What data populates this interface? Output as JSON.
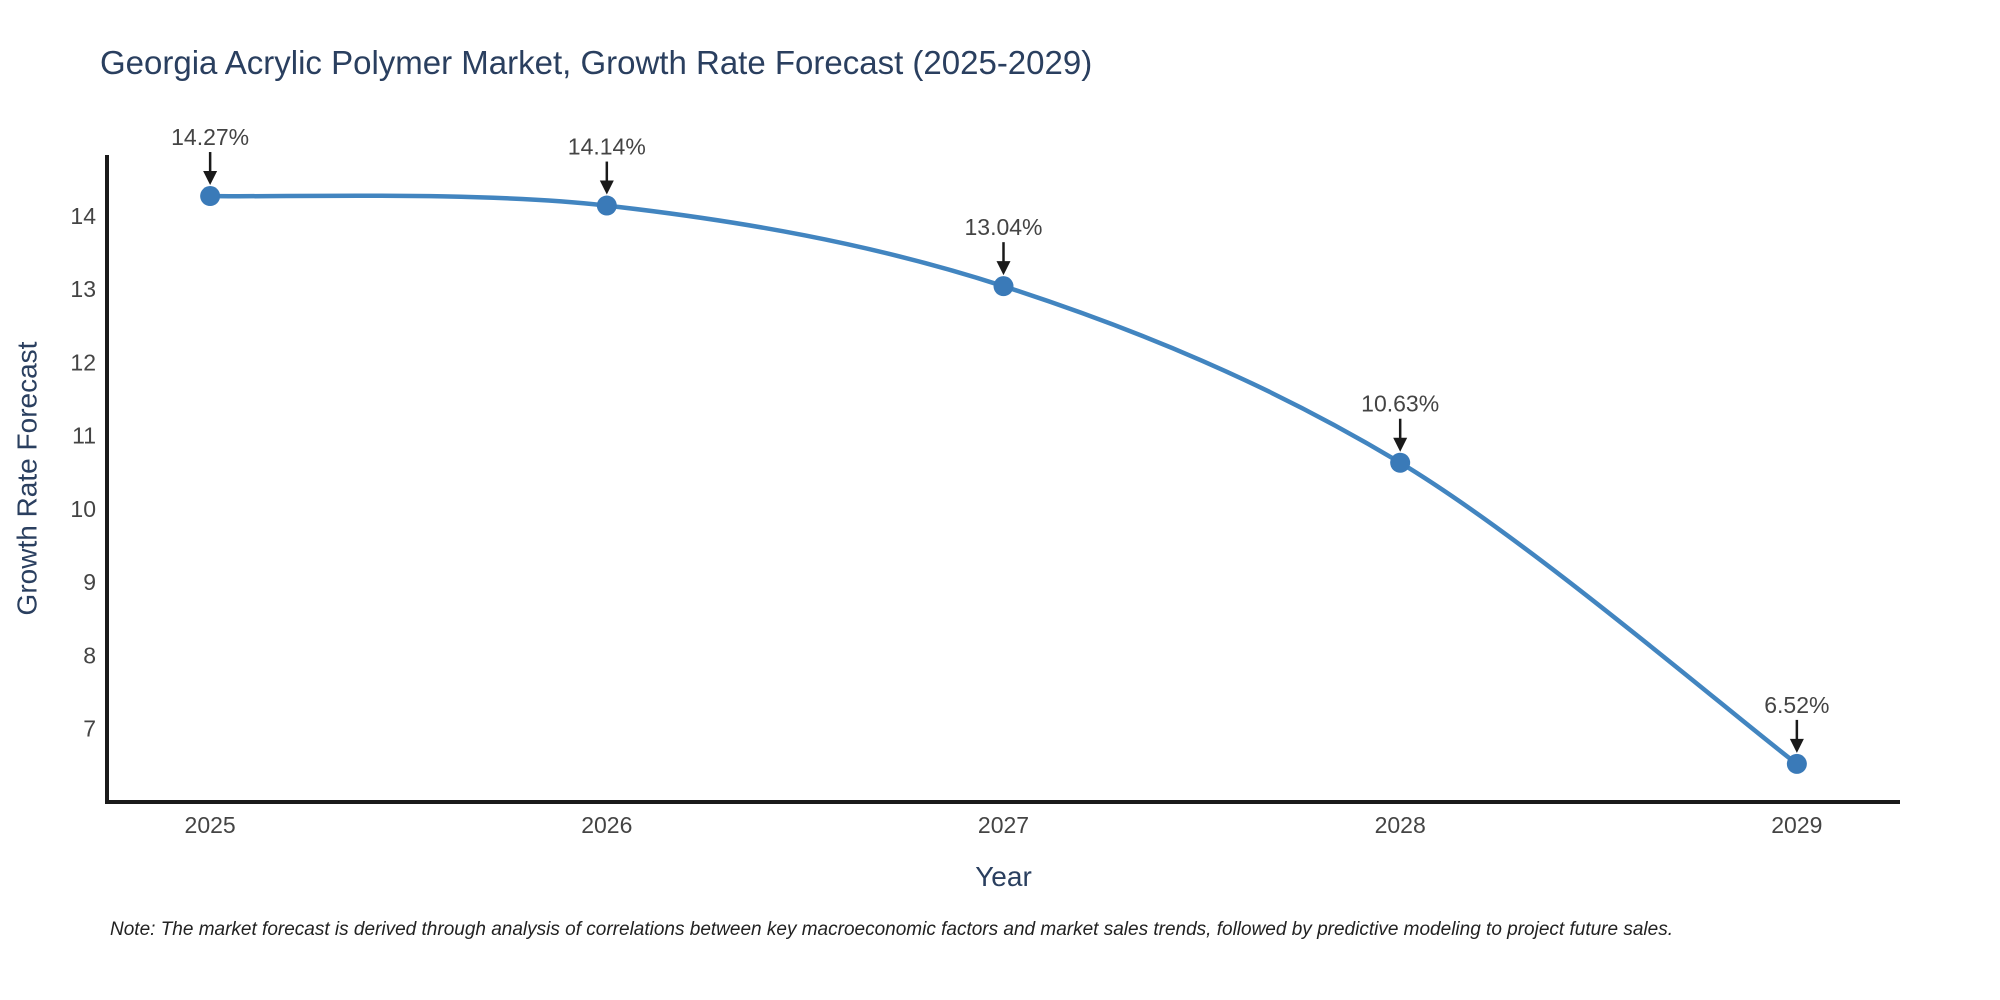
{
  "title": "Georgia Acrylic Polymer Market, Growth Rate Forecast (2025-2029)",
  "note": "Note: The market forecast is derived through analysis of correlations between key macroeconomic factors and market sales trends, followed by predictive modeling to project future sales.",
  "chart_data": {
    "type": "line",
    "title": "Georgia Acrylic Polymer Market, Growth Rate Forecast (2025-2029)",
    "xlabel": "Year",
    "ylabel": "Growth Rate Forecast",
    "x": [
      2025,
      2026,
      2027,
      2028,
      2029
    ],
    "y": [
      14.27,
      14.14,
      13.04,
      10.63,
      6.52
    ],
    "series": [
      {
        "name": "Growth Rate Forecast",
        "values": [
          14.27,
          14.14,
          13.04,
          10.63,
          6.52
        ]
      }
    ],
    "annotations": [
      "14.27%",
      "14.14%",
      "13.04%",
      "10.63%",
      "6.52%"
    ],
    "line_shape": "spline",
    "xticks": [
      2025,
      2026,
      2027,
      2028,
      2029
    ],
    "yticks": [
      7,
      8,
      9,
      10,
      11,
      12,
      13,
      14
    ],
    "xlim": [
      2024.74,
      2029.26
    ],
    "ylim": [
      6.0,
      14.83
    ],
    "grid": false,
    "legend": false,
    "colors": {
      "line": "#4285c0",
      "marker": "#3a7ab8",
      "arrow": "#1a1a1a",
      "axis": "#1a1a1a",
      "tick_label": "#444444",
      "annotation_label": "#444444",
      "title": "#2a3f5f",
      "axis_title": "#2a3f5f",
      "note": "#222222",
      "background": "#ffffff"
    }
  }
}
